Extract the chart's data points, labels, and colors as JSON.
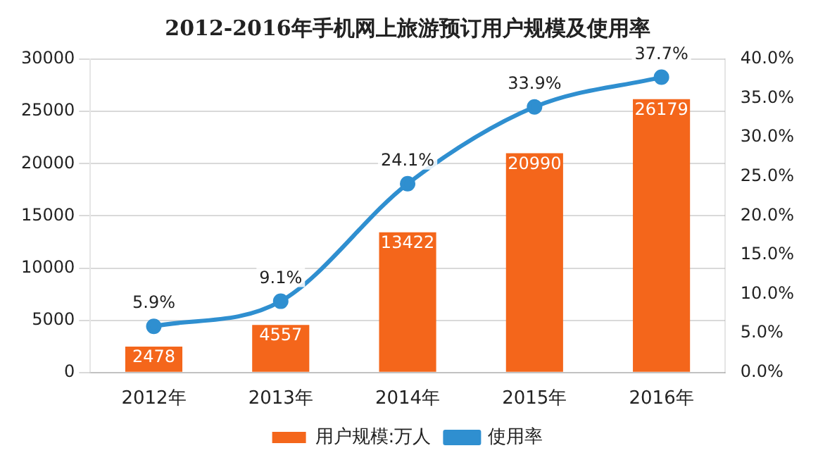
{
  "chart_data": {
    "type": "bar",
    "title": "2012-2016年手机网上旅游预订用户规模及使用率",
    "categories": [
      "2012年",
      "2013年",
      "2014年",
      "2015年",
      "2016年"
    ],
    "series": [
      {
        "name": "用户规模:万人",
        "color": "#f4661b",
        "values": [
          2478,
          4557,
          13422,
          20990,
          26179
        ],
        "value_labels": [
          "2478",
          "4557",
          "13422",
          "20990",
          "26179"
        ]
      },
      {
        "name": "使用率",
        "type": "line",
        "axis": "y2",
        "color": "#2f8fd0",
        "marker": "circle",
        "values": [
          5.9,
          9.1,
          24.1,
          33.9,
          37.7
        ],
        "value_labels": [
          "5.9%",
          "9.1%",
          "24.1%",
          "33.9%",
          "37.7%"
        ]
      }
    ],
    "ylim": [
      0,
      30000
    ],
    "yticks": [
      0,
      5000,
      10000,
      15000,
      20000,
      25000,
      30000
    ],
    "y2lim": [
      0,
      40
    ],
    "y2ticks": [
      {
        "value": 0,
        "label": "0.0%"
      },
      {
        "value": 5,
        "label": "5.0%"
      },
      {
        "value": 10,
        "label": "10.0%"
      },
      {
        "value": 15,
        "label": "15.0%"
      },
      {
        "value": 20,
        "label": "20.0%"
      },
      {
        "value": 25,
        "label": "25.0%"
      },
      {
        "value": 30,
        "label": "30.0%"
      },
      {
        "value": 35,
        "label": "35.0%"
      },
      {
        "value": 40,
        "label": "40.0%"
      }
    ],
    "grid": "y",
    "legend": "bottom"
  }
}
